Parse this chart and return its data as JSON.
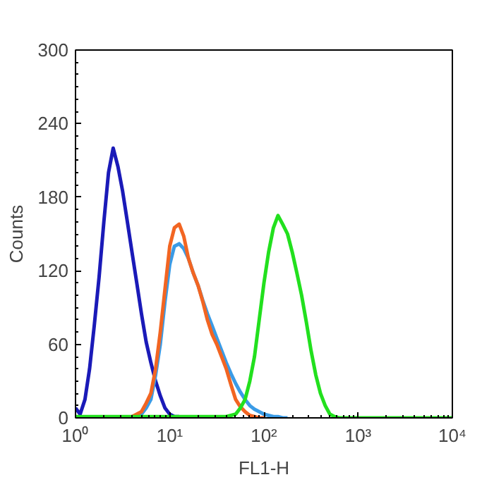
{
  "chart_data": {
    "type": "line",
    "xlabel": "FL1-H",
    "ylabel": "Counts",
    "log": "x",
    "x": [
      1,
      1.12,
      1.26,
      1.41,
      1.58,
      1.78,
      2,
      2.24,
      2.51,
      2.82,
      3.16,
      3.55,
      3.98,
      4.47,
      5.01,
      5.62,
      6.31,
      7.08,
      7.94,
      8.91,
      10,
      11.2,
      12.6,
      14.1,
      15.8,
      17.8,
      20,
      22.4,
      25.1,
      28.2,
      31.6,
      35.5,
      39.8,
      44.7,
      50.1,
      56.2,
      63.1,
      70.8,
      79.4,
      89.1,
      100,
      112,
      126,
      141,
      158,
      178,
      200,
      224,
      251,
      282,
      316,
      355,
      398,
      447,
      501,
      562,
      631,
      708,
      794,
      891,
      1000,
      10000
    ],
    "xlim": [
      1,
      10000
    ],
    "xticks": [
      {
        "value": 1,
        "label": "10⁰"
      },
      {
        "value": 10,
        "label": "10¹"
      },
      {
        "value": 100,
        "label": "10²"
      },
      {
        "value": 1000,
        "label": "10³"
      },
      {
        "value": 10000,
        "label": "10⁴"
      }
    ],
    "ylim": [
      0,
      300
    ],
    "yticks": [
      0,
      60,
      120,
      180,
      240,
      300
    ],
    "grid": false,
    "marker": "none",
    "line_style": "solid",
    "series": [
      {
        "color": "#1a1ab8",
        "values": [
          8,
          3,
          15,
          40,
          75,
          115,
          160,
          200,
          220,
          205,
          185,
          160,
          135,
          110,
          85,
          62,
          45,
          30,
          18,
          8,
          3,
          1,
          1,
          null,
          null,
          null,
          null,
          null,
          null,
          null,
          null,
          null,
          null,
          null,
          null,
          null,
          null,
          null,
          null,
          null,
          null,
          null,
          null,
          null,
          null,
          null,
          null,
          null,
          null,
          null,
          null,
          null,
          null,
          null,
          null,
          null,
          null,
          null,
          null,
          null,
          null,
          null
        ]
      },
      {
        "color": "#3a9be6",
        "values": [
          null,
          null,
          null,
          null,
          null,
          null,
          null,
          null,
          null,
          null,
          null,
          null,
          0,
          0,
          3,
          8,
          15,
          35,
          60,
          95,
          125,
          140,
          142,
          138,
          130,
          118,
          108,
          96,
          85,
          75,
          65,
          55,
          45,
          36,
          28,
          21,
          15,
          10,
          7,
          5,
          3,
          2,
          1,
          1,
          0,
          0,
          null,
          null,
          null,
          null,
          null,
          null,
          null,
          null,
          null,
          null,
          null,
          null,
          null,
          null,
          null,
          null
        ]
      },
      {
        "color": "#f26522",
        "values": [
          null,
          null,
          null,
          null,
          null,
          null,
          null,
          null,
          null,
          null,
          null,
          null,
          1,
          3,
          5,
          12,
          20,
          40,
          70,
          105,
          140,
          155,
          158,
          148,
          130,
          118,
          108,
          95,
          80,
          68,
          60,
          50,
          40,
          27,
          15,
          9,
          5,
          2,
          1,
          0,
          0,
          null,
          null,
          null,
          null,
          null,
          null,
          null,
          null,
          null,
          null,
          null,
          null,
          null,
          null,
          null,
          null,
          null,
          null,
          null,
          null,
          null
        ]
      },
      {
        "color": "#22e01e",
        "values": [
          1,
          1,
          1,
          1,
          1,
          1,
          1,
          1,
          1,
          1,
          1,
          1,
          1,
          1,
          1,
          1,
          1,
          1,
          1,
          1,
          1,
          1,
          1,
          1,
          1,
          1,
          1,
          1,
          1,
          1,
          1,
          1,
          1,
          2,
          3,
          8,
          15,
          30,
          50,
          80,
          110,
          135,
          155,
          165,
          158,
          150,
          135,
          118,
          100,
          78,
          55,
          35,
          20,
          10,
          3,
          1,
          0,
          0,
          0,
          0,
          0,
          0
        ]
      }
    ]
  }
}
